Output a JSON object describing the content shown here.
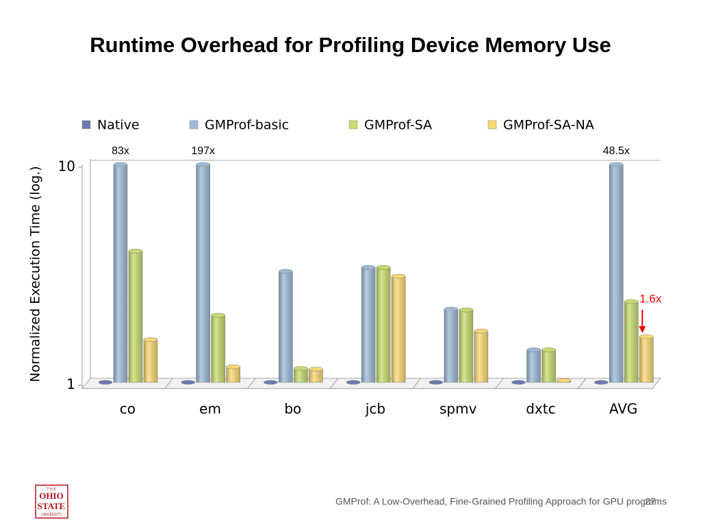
{
  "title": "Runtime Overhead for Profiling Device Memory Use",
  "chart_data": {
    "type": "bar",
    "log_scale": true,
    "y_label": "Normalized Execution Time (log.)",
    "categories": [
      "co",
      "em",
      "bo",
      "jcb",
      "spmv",
      "dxtc",
      "AVG"
    ],
    "series": [
      {
        "name": "Native",
        "color": "#6b7bb0",
        "values": [
          1,
          1,
          1,
          1,
          1,
          1,
          1
        ]
      },
      {
        "name": "GMProf-basic",
        "color": "#9db9d6",
        "values": [
          83,
          197,
          3.23,
          3.37,
          2.17,
          1.41,
          48.5
        ],
        "value_labels": [
          "83x",
          "197x",
          null,
          null,
          null,
          null,
          "48.5x"
        ]
      },
      {
        "name": "GMProf-SA",
        "color": "#c6dc6c",
        "values": [
          4.0,
          2.03,
          1.16,
          3.37,
          2.15,
          1.41,
          2.35
        ]
      },
      {
        "name": "GMProf-SA-NA",
        "color": "#f9d872",
        "values": [
          1.57,
          1.18,
          1.15,
          3.07,
          1.72,
          1.02,
          1.62
        ]
      }
    ],
    "annotation": "1.6x",
    "ylim": [
      1,
      10
    ],
    "yticks": [
      1,
      10
    ],
    "legend": "top"
  },
  "footer": {
    "text": "GMProf: A Low-Overhead, Fine-Grained Profiling Approach for GPU programs",
    "page": "27"
  },
  "logo": {
    "top": "T H E",
    "line1": "OHIO",
    "line2": "STATE",
    "bottom": "UNIVERSITY"
  }
}
